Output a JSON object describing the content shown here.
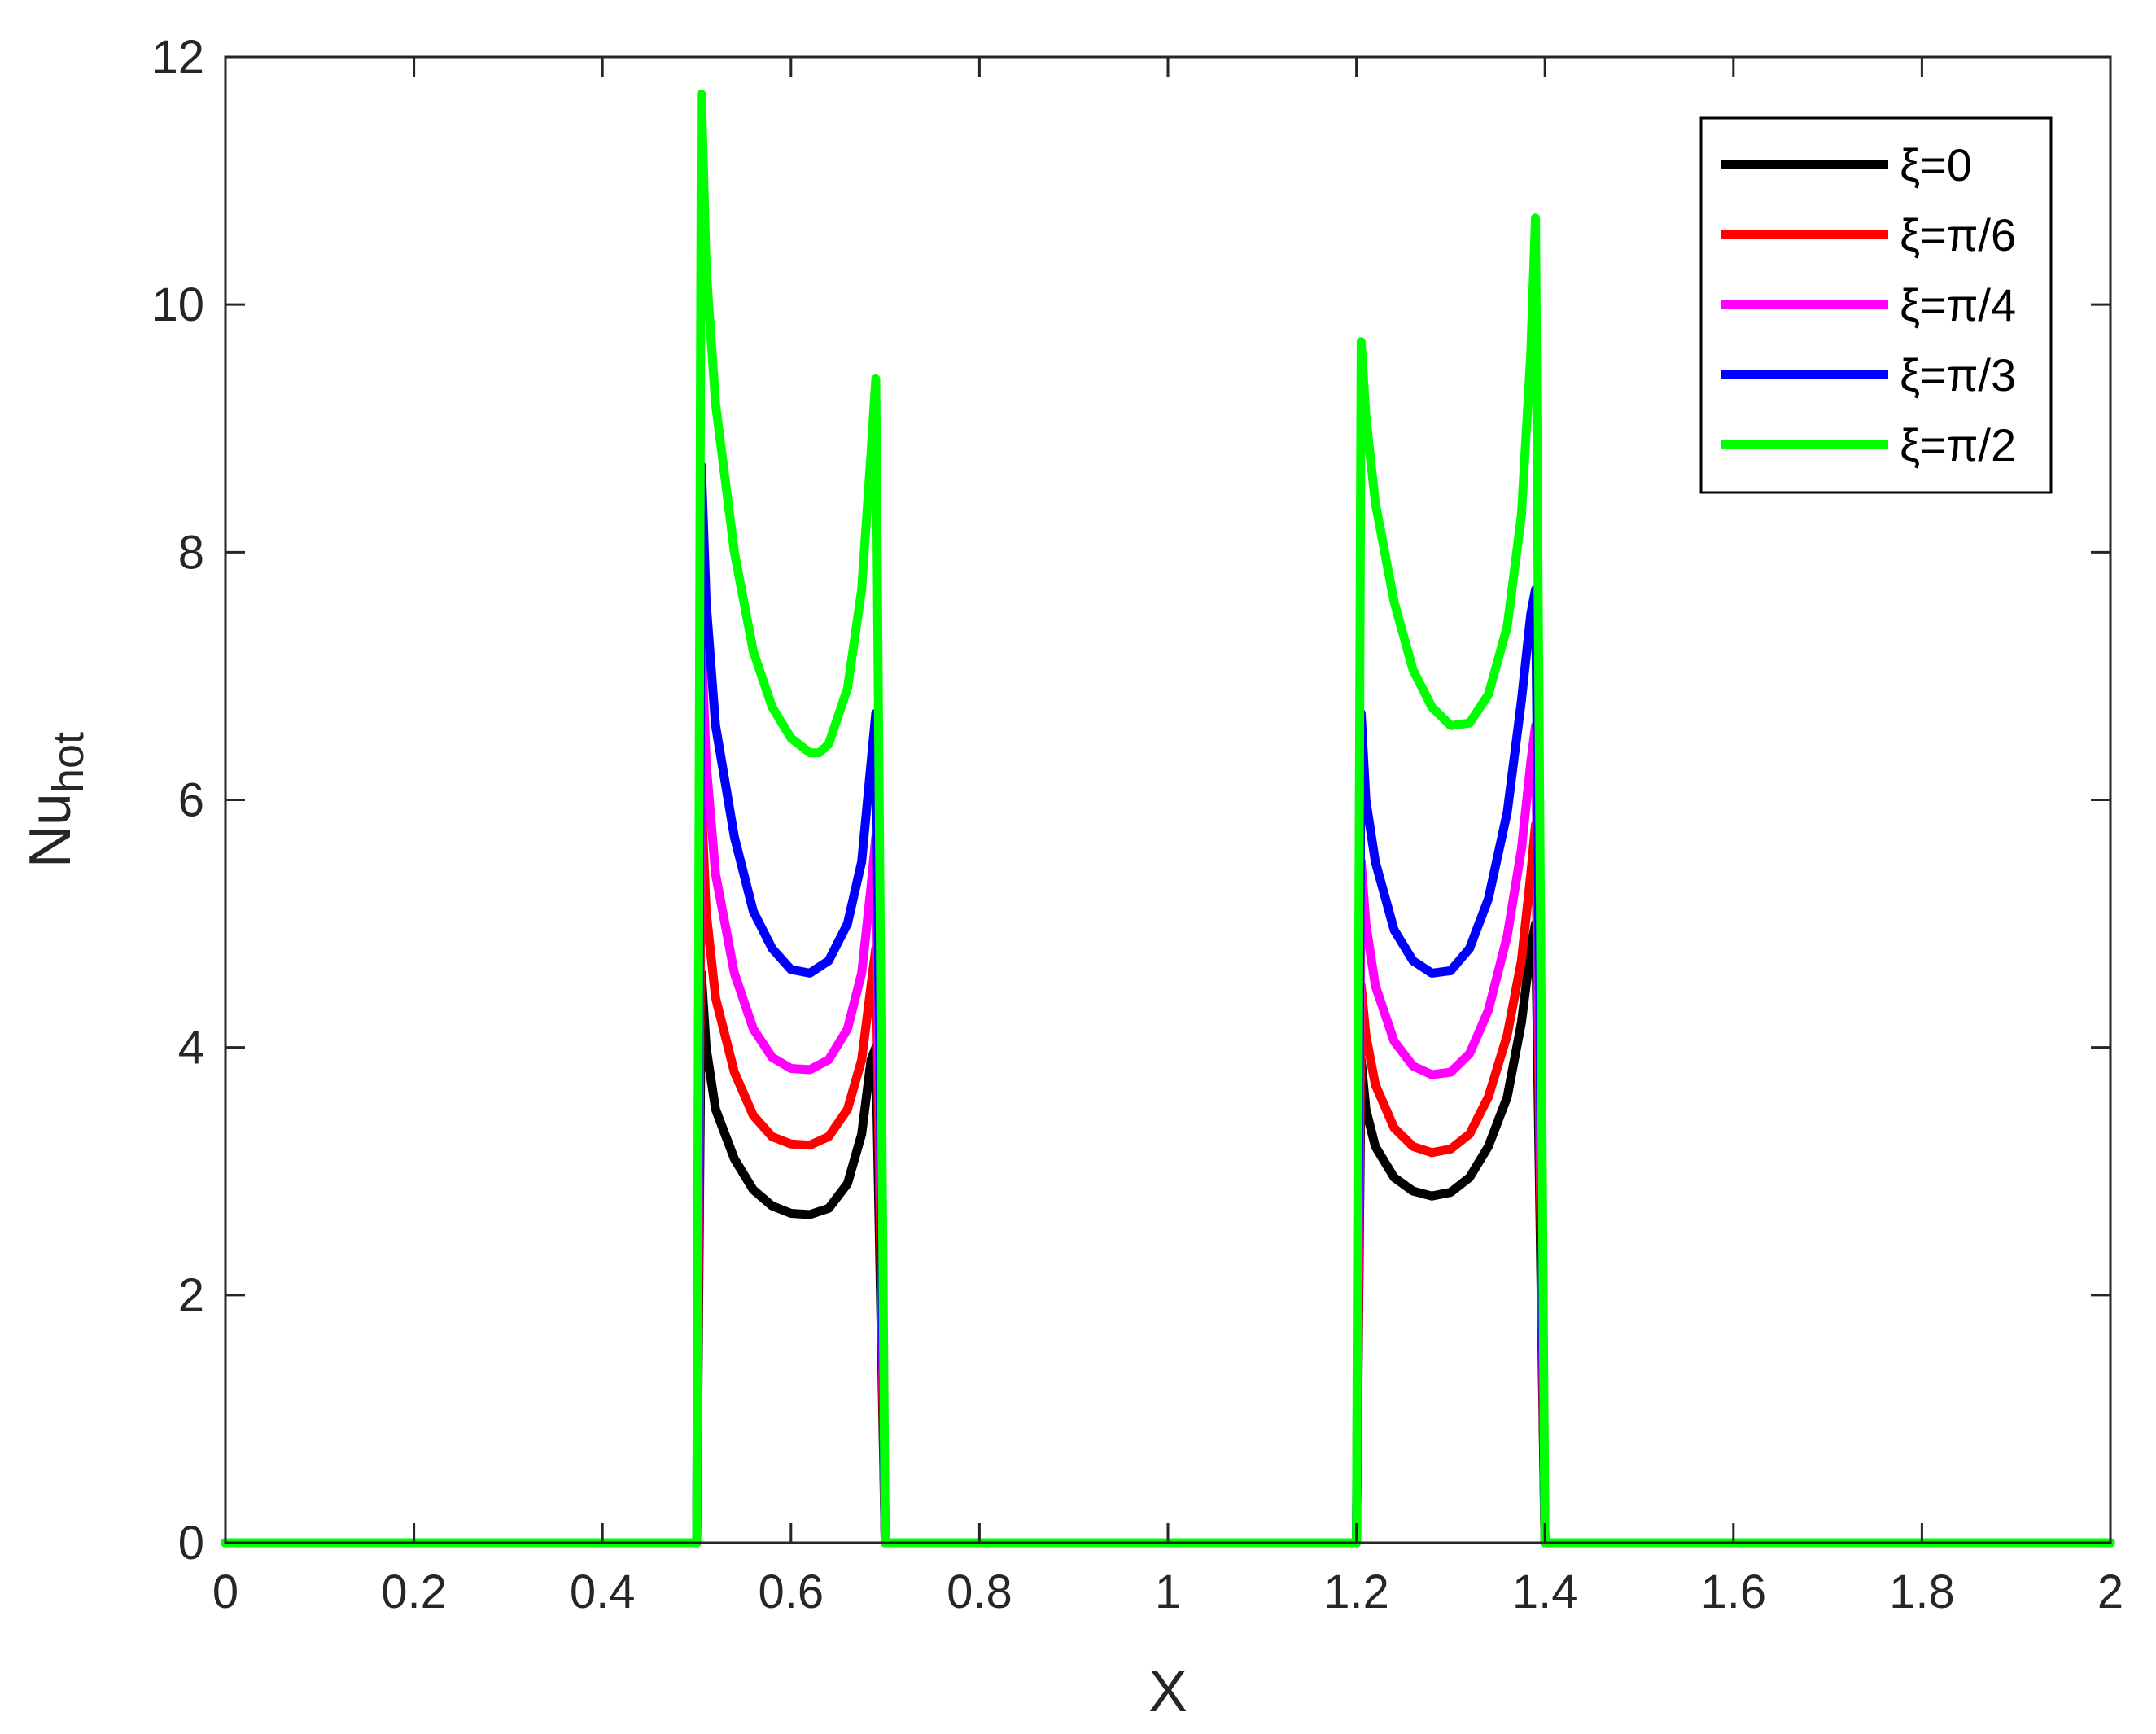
{
  "chart_data": {
    "type": "line",
    "xlabel": "X",
    "ylabel_main": "Nu",
    "ylabel_sub": "hot",
    "xlim": [
      0,
      2
    ],
    "ylim": [
      0,
      12
    ],
    "xticks": [
      0,
      0.2,
      0.4,
      0.6,
      0.8,
      1,
      1.2,
      1.4,
      1.6,
      1.8,
      2
    ],
    "xtick_labels": [
      "0",
      "0.2",
      "0.4",
      "0.6",
      "0.8",
      "1",
      "1.2",
      "1.4",
      "1.6",
      "1.8",
      "2"
    ],
    "yticks": [
      0,
      2,
      4,
      6,
      8,
      10,
      12
    ],
    "ytick_labels": [
      "0",
      "2",
      "4",
      "6",
      "8",
      "10",
      "12"
    ],
    "grid": false,
    "legend_position": "top-right",
    "series": [
      {
        "name": "ξ=0",
        "color": "#000000",
        "x": [
          0,
          0.49,
          0.5,
          0.505,
          0.51,
          0.52,
          0.54,
          0.56,
          0.58,
          0.6,
          0.62,
          0.64,
          0.66,
          0.675,
          0.685,
          0.69,
          0.7,
          0.71,
          1.19,
          1.2,
          1.205,
          1.21,
          1.22,
          1.24,
          1.26,
          1.28,
          1.3,
          1.32,
          1.34,
          1.36,
          1.375,
          1.385,
          1.39,
          1.4,
          1.41,
          2
        ],
        "y": [
          0,
          0,
          0,
          4.6,
          4.0,
          3.5,
          3.1,
          2.85,
          2.72,
          2.66,
          2.65,
          2.7,
          2.9,
          3.3,
          3.9,
          4.0,
          0,
          0,
          0,
          0,
          3.9,
          3.5,
          3.2,
          2.95,
          2.84,
          2.8,
          2.83,
          2.95,
          3.2,
          3.6,
          4.2,
          4.8,
          5.0,
          0,
          0,
          0
        ]
      },
      {
        "name": "ξ=π/6",
        "color": "#ff0000",
        "x": [
          0,
          0.49,
          0.5,
          0.505,
          0.51,
          0.52,
          0.54,
          0.56,
          0.58,
          0.6,
          0.62,
          0.64,
          0.66,
          0.675,
          0.685,
          0.69,
          0.7,
          0.71,
          1.19,
          1.2,
          1.205,
          1.21,
          1.22,
          1.24,
          1.26,
          1.28,
          1.3,
          1.32,
          1.34,
          1.36,
          1.375,
          1.385,
          1.39,
          1.4,
          1.41,
          2
        ],
        "y": [
          0,
          0,
          0,
          6.0,
          5.1,
          4.4,
          3.8,
          3.45,
          3.28,
          3.22,
          3.21,
          3.28,
          3.5,
          3.9,
          4.5,
          4.8,
          0,
          0,
          0,
          0,
          4.5,
          4.1,
          3.7,
          3.35,
          3.2,
          3.15,
          3.18,
          3.3,
          3.6,
          4.1,
          4.7,
          5.4,
          5.8,
          0,
          0,
          0
        ]
      },
      {
        "name": "ξ=π/4",
        "color": "#ff00ff",
        "x": [
          0,
          0.49,
          0.5,
          0.505,
          0.51,
          0.52,
          0.54,
          0.56,
          0.58,
          0.6,
          0.62,
          0.64,
          0.66,
          0.675,
          0.685,
          0.69,
          0.7,
          0.71,
          1.19,
          1.2,
          1.205,
          1.21,
          1.22,
          1.24,
          1.26,
          1.28,
          1.3,
          1.32,
          1.34,
          1.36,
          1.375,
          1.385,
          1.39,
          1.4,
          1.41,
          2
        ],
        "y": [
          0,
          0,
          0,
          7.3,
          6.3,
          5.4,
          4.6,
          4.15,
          3.92,
          3.83,
          3.82,
          3.9,
          4.15,
          4.6,
          5.3,
          5.7,
          0,
          0,
          0,
          0,
          5.5,
          5.0,
          4.5,
          4.05,
          3.85,
          3.78,
          3.8,
          3.95,
          4.3,
          4.9,
          5.6,
          6.3,
          6.6,
          0,
          0,
          0
        ]
      },
      {
        "name": "ξ=π/3",
        "color": "#0000ff",
        "x": [
          0,
          0.49,
          0.5,
          0.505,
          0.51,
          0.52,
          0.54,
          0.56,
          0.58,
          0.6,
          0.62,
          0.64,
          0.66,
          0.675,
          0.685,
          0.69,
          0.7,
          0.71,
          1.19,
          1.2,
          1.205,
          1.21,
          1.22,
          1.24,
          1.26,
          1.28,
          1.3,
          1.32,
          1.34,
          1.36,
          1.375,
          1.385,
          1.39,
          1.4,
          1.41,
          2
        ],
        "y": [
          0,
          0,
          0,
          8.7,
          7.6,
          6.6,
          5.7,
          5.1,
          4.8,
          4.63,
          4.6,
          4.7,
          5.0,
          5.5,
          6.3,
          6.7,
          0,
          0,
          0,
          0,
          6.7,
          6.0,
          5.5,
          4.95,
          4.7,
          4.6,
          4.62,
          4.8,
          5.2,
          5.9,
          6.8,
          7.5,
          7.7,
          0,
          0,
          0
        ]
      },
      {
        "name": "ξ=π/2",
        "color": "#00ff00",
        "x": [
          0,
          0.49,
          0.5,
          0.505,
          0.51,
          0.52,
          0.54,
          0.56,
          0.58,
          0.6,
          0.62,
          0.63,
          0.64,
          0.66,
          0.675,
          0.685,
          0.69,
          0.7,
          0.71,
          1.19,
          1.2,
          1.205,
          1.21,
          1.22,
          1.24,
          1.26,
          1.28,
          1.3,
          1.32,
          1.34,
          1.36,
          1.375,
          1.385,
          1.39,
          1.4,
          1.41,
          2
        ],
        "y": [
          0,
          0,
          0,
          11.7,
          10.3,
          9.2,
          8.0,
          7.2,
          6.75,
          6.5,
          6.38,
          6.38,
          6.45,
          6.9,
          7.7,
          8.8,
          9.4,
          0,
          0,
          0,
          0,
          9.7,
          9.1,
          8.4,
          7.6,
          7.05,
          6.75,
          6.6,
          6.62,
          6.85,
          7.4,
          8.3,
          9.6,
          10.7,
          0,
          0,
          0
        ]
      }
    ]
  }
}
